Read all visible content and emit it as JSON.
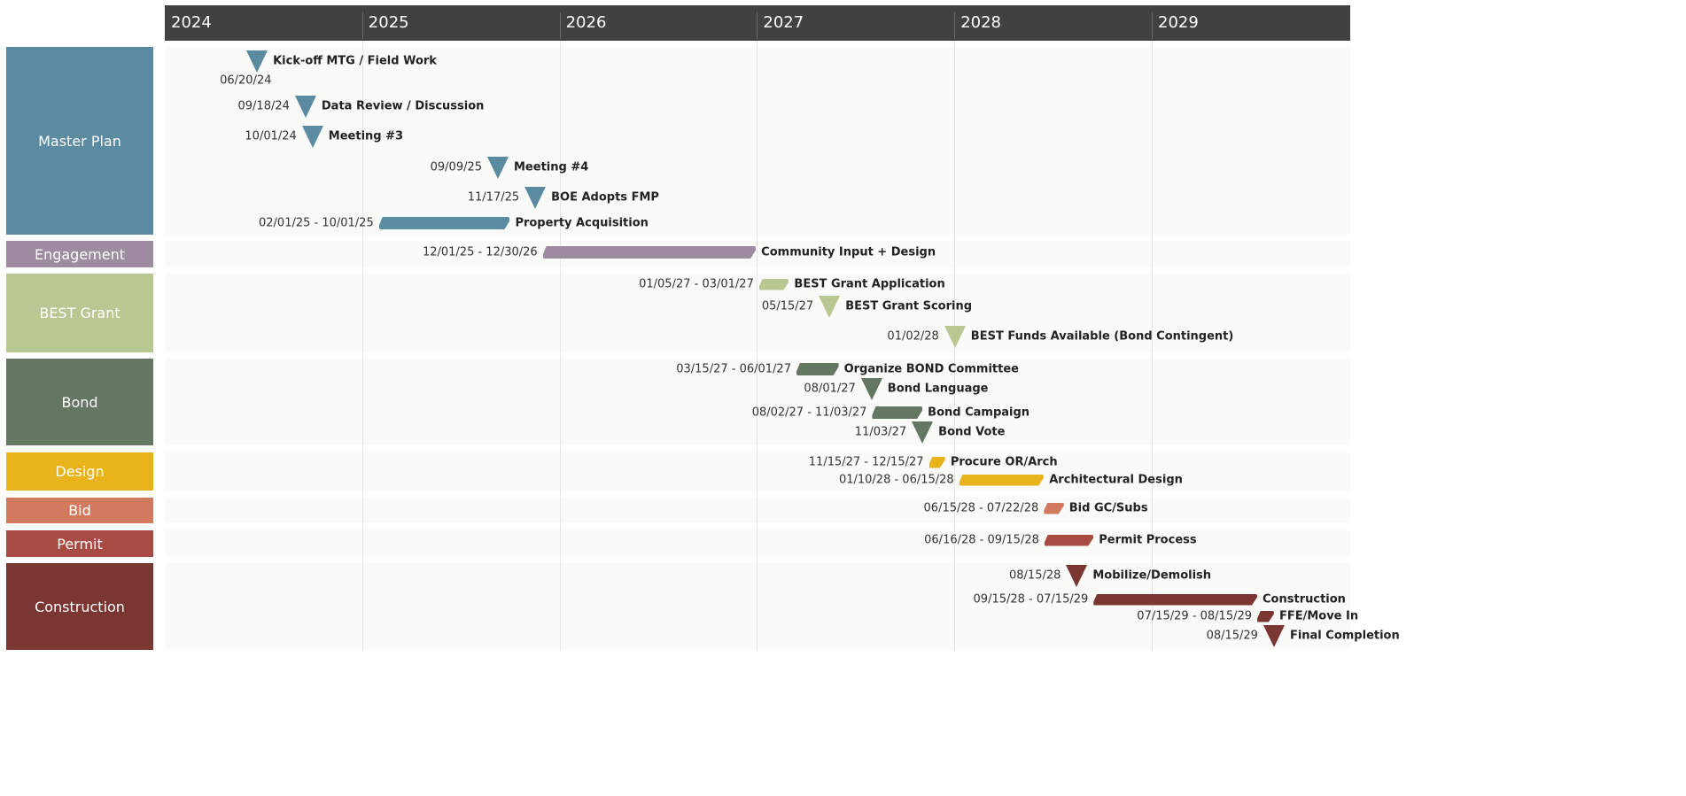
{
  "chart_data": {
    "type": "gantt",
    "years": [
      "2024",
      "2025",
      "2026",
      "2027",
      "2028",
      "2029"
    ],
    "xlim": [
      "01/01/24",
      "12/31/29"
    ],
    "grid": true,
    "categories": [
      {
        "name": "Master Plan",
        "color": "#5b8ba1"
      },
      {
        "name": "Engagement",
        "color": "#9d8b9f"
      },
      {
        "name": "BEST Grant",
        "color": "#b9c792"
      },
      {
        "name": "Bond",
        "color": "#647762"
      },
      {
        "name": "Design",
        "color": "#e9b41b"
      },
      {
        "name": "Bid",
        "color": "#d17a5d"
      },
      {
        "name": "Permit",
        "color": "#a84b43"
      },
      {
        "name": "Construction",
        "color": "#7a3631"
      }
    ],
    "tasks": [
      {
        "category": 0,
        "type": "milestone",
        "name": "Kick-off MTG / Field Work",
        "date": "06/20/24"
      },
      {
        "category": 0,
        "type": "milestone",
        "name": "Data Review / Discussion",
        "date": "09/18/24"
      },
      {
        "category": 0,
        "type": "milestone",
        "name": "Meeting #3",
        "date": "10/01/24"
      },
      {
        "category": 0,
        "type": "milestone",
        "name": "Meeting #4",
        "date": "09/09/25"
      },
      {
        "category": 0,
        "type": "milestone",
        "name": "BOE Adopts FMP",
        "date": "11/17/25"
      },
      {
        "category": 0,
        "type": "bar",
        "name": "Property Acquisition",
        "start": "02/01/25",
        "end": "10/01/25"
      },
      {
        "category": 1,
        "type": "bar",
        "name": "Community Input + Design",
        "start": "12/01/25",
        "end": "12/30/26"
      },
      {
        "category": 2,
        "type": "bar",
        "name": "BEST Grant Application",
        "start": "01/05/27",
        "end": "03/01/27"
      },
      {
        "category": 2,
        "type": "milestone",
        "name": "BEST Grant Scoring",
        "date": "05/15/27"
      },
      {
        "category": 2,
        "type": "milestone",
        "name": "BEST Funds Available (Bond Contingent)",
        "date": "01/02/28"
      },
      {
        "category": 3,
        "type": "bar",
        "name": "Organize BOND Committee",
        "start": "03/15/27",
        "end": "06/01/27"
      },
      {
        "category": 3,
        "type": "milestone",
        "name": "Bond Language",
        "date": "08/01/27"
      },
      {
        "category": 3,
        "type": "bar",
        "name": "Bond Campaign",
        "start": "08/02/27",
        "end": "11/03/27"
      },
      {
        "category": 3,
        "type": "milestone",
        "name": "Bond Vote",
        "date": "11/03/27"
      },
      {
        "category": 4,
        "type": "bar",
        "name": "Procure OR/Arch",
        "start": "11/15/27",
        "end": "12/15/27"
      },
      {
        "category": 4,
        "type": "bar",
        "name": "Architectural Design",
        "start": "01/10/28",
        "end": "06/15/28"
      },
      {
        "category": 5,
        "type": "bar",
        "name": "Bid GC/Subs",
        "start": "06/15/28",
        "end": "07/22/28"
      },
      {
        "category": 6,
        "type": "bar",
        "name": "Permit Process",
        "start": "06/16/28",
        "end": "09/15/28"
      },
      {
        "category": 7,
        "type": "milestone",
        "name": "Mobilize/Demolish",
        "date": "08/15/28"
      },
      {
        "category": 7,
        "type": "bar",
        "name": "Construction",
        "start": "09/15/28",
        "end": "07/15/29"
      },
      {
        "category": 7,
        "type": "bar",
        "name": "FFE/Move In",
        "start": "07/15/29",
        "end": "08/15/29"
      },
      {
        "category": 7,
        "type": "milestone",
        "name": "Final Completion",
        "date": "08/15/29"
      }
    ]
  }
}
